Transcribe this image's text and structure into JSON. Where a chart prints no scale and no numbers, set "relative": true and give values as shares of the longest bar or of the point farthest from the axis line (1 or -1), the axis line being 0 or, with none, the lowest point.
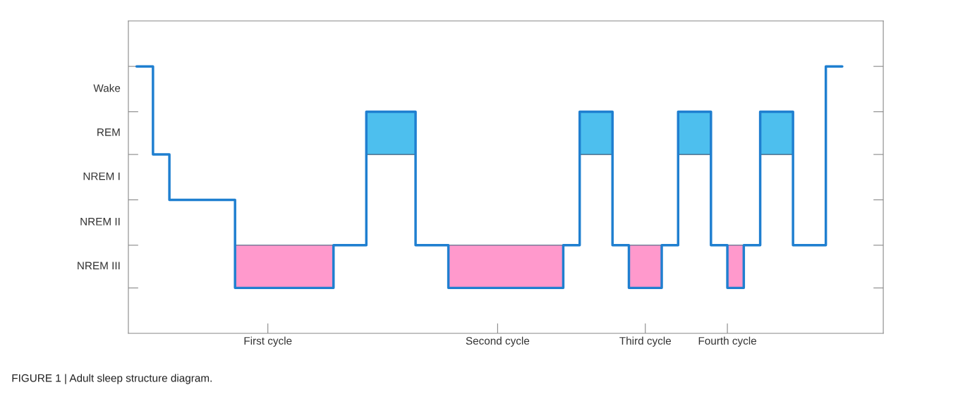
{
  "chart_data": {
    "type": "step",
    "relative": true,
    "annotations": [
      "NREM III",
      "NREM II",
      "NREM I",
      "REM",
      "Wake",
      "FIGURE 1 | Adult sleep structure diagram."
    ],
    "categories": [
      null,
      null,
      null,
      null,
      null,
      null,
      null,
      null,
      "First cycle",
      null,
      null,
      null,
      null,
      null,
      null,
      null,
      null,
      null,
      null,
      null,
      null,
      null,
      "Second cycle",
      null,
      null,
      null,
      null,
      null,
      null,
      null,
      null,
      "Third cycle",
      null,
      null,
      null,
      null,
      "Fourth cycle",
      null,
      null,
      null,
      null,
      null,
      null,
      null,
      null,
      null
    ],
    "grid": false,
    "legend": false,
    "series": [
      {
        "color": "#1f7fd0",
        "values": [
          1,
          0.67,
          0.5,
          0.5,
          0.5,
          0.5,
          0.17,
          0.17,
          0.17,
          0.17,
          0.17,
          0.17,
          0.33,
          0.33,
          0.83,
          0.83,
          0.83,
          0.33,
          0.33,
          0.17,
          0.17,
          0.17,
          0.17,
          0.17,
          0.17,
          0.17,
          0.33,
          0.83,
          0.83,
          0.33,
          0.17,
          0.17,
          0.33,
          0.83,
          0.83,
          0.33,
          0.17,
          0.33,
          0.83,
          0.83,
          0.33,
          0.33,
          1,
          1,
          null,
          null
        ]
      }
    ]
  }
}
